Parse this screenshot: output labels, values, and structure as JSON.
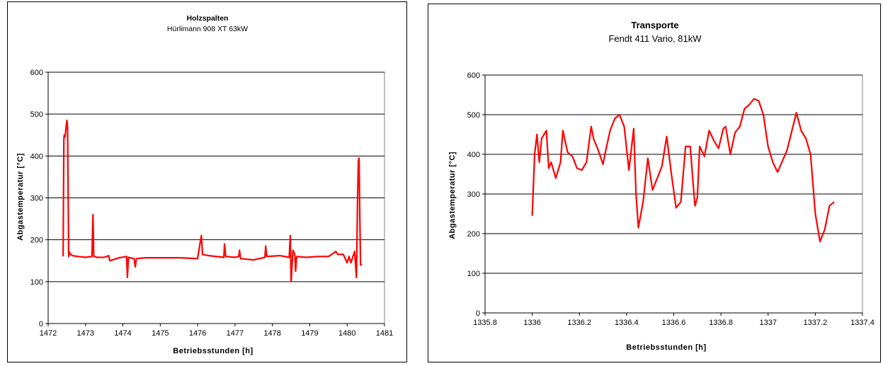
{
  "chart_data": [
    {
      "type": "line",
      "title": "Holzspalten",
      "subtitle": "Hürlimann 908 XT 63kW",
      "xlabel": "Betriebsstunden [h]",
      "ylabel": "Abgastemperatur [°C]",
      "xlim": [
        1472,
        1481
      ],
      "ylim": [
        0,
        600
      ],
      "xticks": [
        "1472",
        "1473",
        "1474",
        "1475",
        "1476",
        "1477",
        "1478",
        "1479",
        "1480",
        "1481"
      ],
      "yticks": [
        "0",
        "100",
        "200",
        "300",
        "400",
        "500",
        "600"
      ],
      "grid": "horizontal",
      "line_color": "#ff0000",
      "x": [
        1472.4,
        1472.42,
        1472.43,
        1472.45,
        1472.47,
        1472.5,
        1472.52,
        1472.55,
        1472.57,
        1472.6,
        1472.65,
        1472.8,
        1473.0,
        1473.17,
        1473.2,
        1473.22,
        1473.25,
        1473.3,
        1473.5,
        1473.62,
        1473.65,
        1473.9,
        1474.1,
        1474.12,
        1474.15,
        1474.3,
        1474.33,
        1474.36,
        1474.6,
        1475.0,
        1475.5,
        1476.0,
        1476.08,
        1476.1,
        1476.13,
        1476.3,
        1476.7,
        1476.72,
        1476.75,
        1477.0,
        1477.1,
        1477.12,
        1477.15,
        1477.5,
        1477.8,
        1477.82,
        1477.85,
        1478.2,
        1478.45,
        1478.48,
        1478.5,
        1478.55,
        1478.6,
        1478.62,
        1478.65,
        1478.9,
        1479.2,
        1479.5,
        1479.7,
        1479.75,
        1479.9,
        1480.0,
        1480.05,
        1480.1,
        1480.2,
        1480.25,
        1480.28,
        1480.3,
        1480.32,
        1480.34,
        1480.36,
        1480.4
      ],
      "y": [
        160,
        440,
        450,
        445,
        460,
        485,
        470,
        160,
        170,
        165,
        162,
        160,
        158,
        160,
        260,
        160,
        160,
        158,
        158,
        162,
        150,
        157,
        160,
        110,
        158,
        155,
        135,
        155,
        157,
        157,
        157,
        155,
        200,
        210,
        165,
        162,
        158,
        190,
        160,
        158,
        160,
        175,
        155,
        152,
        158,
        185,
        160,
        162,
        158,
        210,
        100,
        175,
        165,
        125,
        160,
        158,
        160,
        160,
        172,
        165,
        165,
        145,
        160,
        145,
        172,
        110,
        300,
        390,
        395,
        250,
        140,
        140
      ]
    },
    {
      "type": "line",
      "title": "Transporte",
      "subtitle": "Fendt 411 Vario,  81kW",
      "xlabel": "Betriebsstunden [h]",
      "ylabel": "Abgastemperatur [°C]",
      "xlim": [
        1335.8,
        1337.4
      ],
      "ylim": [
        0,
        600
      ],
      "xticks": [
        "1335.8",
        "1336",
        "1336.2",
        "1336.4",
        "1336.6",
        "1336.8",
        "1337",
        "1337.2",
        "1337.4"
      ],
      "yticks": [
        "0",
        "100",
        "200",
        "300",
        "400",
        "500",
        "600"
      ],
      "grid": "horizontal",
      "line_color": "#ff0000",
      "x": [
        1336.0,
        1336.01,
        1336.02,
        1336.03,
        1336.04,
        1336.06,
        1336.07,
        1336.08,
        1336.1,
        1336.12,
        1336.13,
        1336.15,
        1336.17,
        1336.19,
        1336.21,
        1336.23,
        1336.25,
        1336.26,
        1336.28,
        1336.3,
        1336.31,
        1336.33,
        1336.35,
        1336.37,
        1336.39,
        1336.41,
        1336.43,
        1336.44,
        1336.45,
        1336.47,
        1336.49,
        1336.51,
        1336.53,
        1336.55,
        1336.57,
        1336.59,
        1336.61,
        1336.63,
        1336.65,
        1336.67,
        1336.68,
        1336.69,
        1336.7,
        1336.71,
        1336.73,
        1336.75,
        1336.77,
        1336.79,
        1336.81,
        1336.82,
        1336.84,
        1336.86,
        1336.88,
        1336.9,
        1336.92,
        1336.94,
        1336.96,
        1336.98,
        1337.0,
        1337.02,
        1337.04,
        1337.08,
        1337.12,
        1337.14,
        1337.16,
        1337.18,
        1337.2,
        1337.22,
        1337.24,
        1337.26,
        1337.28
      ],
      "y": [
        245,
        400,
        450,
        380,
        440,
        460,
        365,
        380,
        340,
        380,
        460,
        405,
        395,
        365,
        360,
        380,
        470,
        440,
        410,
        375,
        405,
        460,
        490,
        500,
        470,
        360,
        465,
        300,
        215,
        280,
        390,
        310,
        340,
        370,
        445,
        350,
        265,
        280,
        420,
        420,
        340,
        270,
        290,
        420,
        395,
        460,
        435,
        415,
        465,
        470,
        400,
        455,
        470,
        515,
        525,
        540,
        535,
        500,
        420,
        380,
        355,
        410,
        505,
        460,
        440,
        400,
        250,
        180,
        210,
        270,
        280
      ]
    }
  ]
}
